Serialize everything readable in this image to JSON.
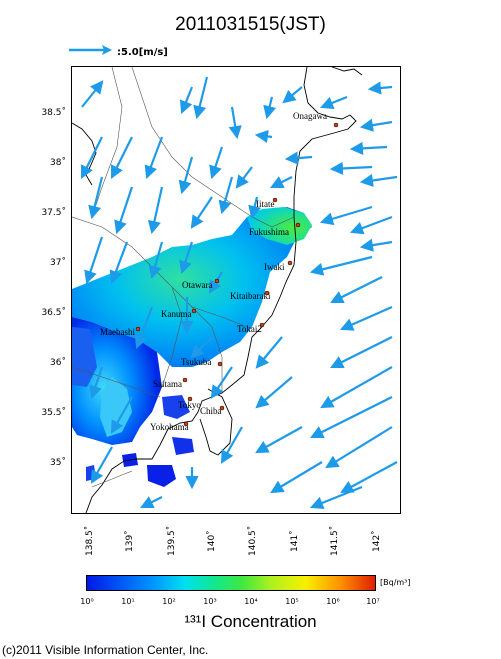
{
  "title": "2011031515(JST)",
  "wind_scale": {
    "label": ":5.0[m/s]"
  },
  "lat_labels": [
    "38.5˚",
    "38˚",
    "37.5˚",
    "37˚",
    "36.5˚",
    "36˚",
    "35.5˚",
    "35˚"
  ],
  "lon_labels": [
    "138.5˚",
    "139˚",
    "139.5˚",
    "140˚",
    "140.5˚",
    "141˚",
    "141.5˚",
    "142˚"
  ],
  "cities": [
    "Onagawa",
    "Iitate",
    "Fukushima",
    "Iwaki",
    "Otawara",
    "Kitaibaraki",
    "Kanuma",
    "Tokai2",
    "Maebashi",
    "Tsukuba",
    "Saitama",
    "Tokyo",
    "Chiba",
    "Yokohama"
  ],
  "colorbar": {
    "ticks": [
      "10⁰",
      "10¹",
      "10²",
      "10³",
      "10⁴",
      "10⁵",
      "10⁶",
      "10⁷"
    ],
    "unit": "[Bq/m³]",
    "title": "¹³¹I Concentration",
    "colors": [
      "#0018e8",
      "#0090ff",
      "#00e0f0",
      "#10e890",
      "#40e840",
      "#b0f020",
      "#f8f000",
      "#ff9000",
      "#e02000"
    ]
  },
  "copyright": "(c)2011 Visible Information Center, Inc.",
  "colors": {
    "arrow": "#1e9be8",
    "coast": "#000000",
    "border": "#555555"
  }
}
